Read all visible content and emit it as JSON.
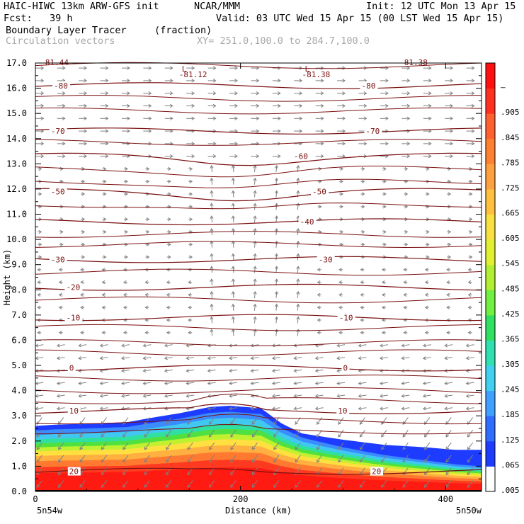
{
  "header": {
    "model": "HAIC-HIWC 13km ARW-GFS init",
    "org": "NCAR/MMM",
    "init": "Init: 12 UTC Mon 13 Apr 15",
    "fcst": "Fcst:   39 h",
    "valid": "Valid: 03 UTC Wed 15 Apr 15 (00 LST Wed 15 Apr 15)",
    "field": "Boundary Layer Tracer",
    "field_unit": "(fraction)",
    "vectors": "Circulation vectors",
    "xy": "XY= 251.0,100.0 to 284.7,100.0"
  },
  "chart_data": {
    "type": "cross-section",
    "xlabel": "Distance (km)",
    "ylabel": "Height (km)",
    "xlim": [
      0,
      435
    ],
    "ylim": [
      0,
      17
    ],
    "xticks": [
      "0",
      "200",
      "400"
    ],
    "xtick_values": [
      0,
      200,
      400
    ],
    "yticks": [
      "0.0",
      "1.0",
      "2.0",
      "3.0",
      "4.0",
      "5.0",
      "6.0",
      "7.0",
      "8.0",
      "9.0",
      "10.0",
      "11.0",
      "12.0",
      "13.0",
      "14.0",
      "15.0",
      "16.0",
      "17.0"
    ],
    "x_endpoint_labels": [
      "5n54w",
      "5n50w"
    ],
    "colorbar": {
      "labels": [
        ".005",
        ".065",
        ".125",
        ".185",
        ".245",
        ".305",
        ".365",
        ".425",
        ".485",
        ".545",
        ".605",
        ".665",
        ".725",
        ".785",
        ".845",
        ".905",
        "–"
      ],
      "colors": [
        "#ffffff",
        "#1e3cff",
        "#2f6cff",
        "#3fa0ff",
        "#40d0f0",
        "#2fe0b0",
        "#30e060",
        "#70f040",
        "#b0f030",
        "#e0f030",
        "#f8e040",
        "#ffc040",
        "#ffa040",
        "#ff8030",
        "#ff6030",
        "#ff3020",
        "#ff1010"
      ]
    },
    "temperature_contours": {
      "unit": "deg C",
      "levels": [
        {
          "value": -80,
          "label": "-80",
          "height_km": 16.1,
          "label_x_km": [
            18,
            318
          ]
        },
        {
          "value": -70,
          "label": "-70",
          "height_km": 14.3,
          "label_x_km": [
            15,
            322
          ]
        },
        {
          "value": -60,
          "label": "-60",
          "height_km": 13.3,
          "label_x_km": [
            252
          ]
        },
        {
          "value": -50,
          "label": "-50",
          "height_km": 11.9,
          "label_x_km": [
            15,
            270
          ]
        },
        {
          "value": -40,
          "label": "-40",
          "height_km": 10.7,
          "label_x_km": [
            258
          ]
        },
        {
          "value": -30,
          "label": "-30",
          "height_km": 9.2,
          "label_x_km": [
            15,
            276
          ]
        },
        {
          "value": -20,
          "label": "-20",
          "height_km": 8.1,
          "label_x_km": [
            30
          ]
        },
        {
          "value": -10,
          "label": "-10",
          "height_km": 6.9,
          "label_x_km": [
            30,
            296
          ]
        },
        {
          "value": 0,
          "label": "0",
          "height_km": 4.9,
          "label_x_km": [
            33,
            300
          ]
        },
        {
          "value": 10,
          "label": "10",
          "height_km": 3.2,
          "label_x_km": [
            33,
            295
          ]
        },
        {
          "value": 20,
          "label": "20",
          "height_km": 0.8,
          "label_x_km": [
            33,
            328
          ]
        }
      ],
      "extra_lines_km": [
        16.9,
        15.6,
        15.1,
        13.85,
        12.8,
        12.3,
        11.4,
        10.2,
        9.8,
        8.7,
        7.6,
        6.5,
        5.9,
        5.5,
        4.5,
        4.0,
        3.6,
        2.8,
        2.4
      ]
    },
    "lows": [
      {
        "label": "L",
        "value": "-81.12",
        "x_km": 140
      },
      {
        "label": "L",
        "value": "-81.38",
        "x_km": 260
      },
      {
        "label": "",
        "value": "-81.44",
        "x_km": 5
      },
      {
        "label": "",
        "value": "-81.38",
        "x_km": 355
      }
    ],
    "tracer_top_profile": {
      "x_km": [
        0,
        20,
        60,
        90,
        110,
        140,
        170,
        190,
        220,
        240,
        260,
        300,
        340,
        380,
        410,
        435
      ],
      "top_km": [
        2.6,
        2.65,
        2.7,
        2.75,
        2.9,
        3.1,
        3.35,
        3.4,
        3.3,
        2.7,
        2.3,
        2.05,
        1.85,
        1.75,
        1.65,
        1.65
      ]
    }
  }
}
